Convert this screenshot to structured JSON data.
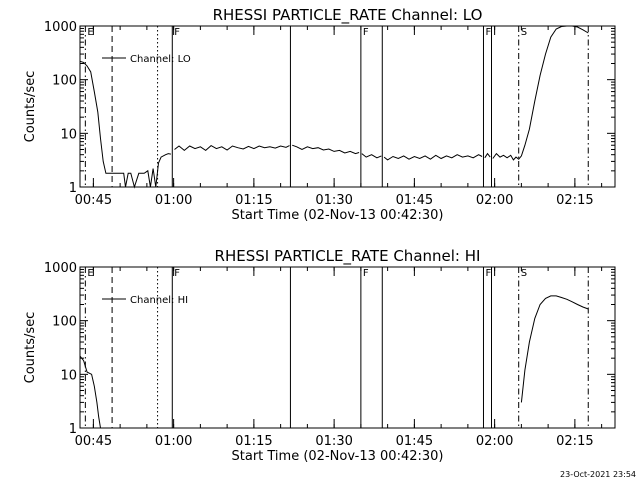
{
  "timestamp": "23-Oct-2021 23:54",
  "chart_data": [
    {
      "type": "line",
      "title": "RHESSI PARTICLE_RATE Channel: LO",
      "xlabel": "Start Time (02-Nov-13 00:42:30)",
      "ylabel": "Counts/sec",
      "yscale": "log",
      "ylim": [
        1,
        1000
      ],
      "xlim": [
        "00:42:30",
        "02:22:30"
      ],
      "x_tick_labels": [
        "00:45",
        "01:00",
        "01:15",
        "01:30",
        "01:45",
        "02:00",
        "02:15"
      ],
      "y_tick_labels": [
        "1",
        "10",
        "100",
        "1000"
      ],
      "legend": {
        "label": "Channel: LO",
        "position": "top-left"
      },
      "series": [
        {
          "name": "Channel: LO",
          "segments": [
            [
              [
                "00:42:30",
                220
              ],
              [
                "00:43:10",
                210
              ],
              [
                "00:43:50",
                180
              ],
              [
                "00:44:30",
                140
              ],
              [
                "00:45:10",
                60
              ],
              [
                "00:45:50",
                25
              ],
              [
                "00:46:20",
                8
              ],
              [
                "00:46:50",
                3
              ],
              [
                "00:47:20",
                1.8
              ],
              [
                "00:48:10",
                1.8
              ],
              [
                "00:49:00",
                1.8
              ],
              [
                "00:50:00",
                1.8
              ],
              [
                "00:50:40",
                1.8
              ],
              [
                "00:51:00",
                1.0
              ],
              [
                "00:51:30",
                1.8
              ],
              [
                "00:52:00",
                1.8
              ],
              [
                "00:52:40",
                1.0
              ],
              [
                "00:53:30",
                1.8
              ],
              [
                "00:54:30",
                1.8
              ],
              [
                "00:55:10",
                2.0
              ],
              [
                "00:55:40",
                1.0
              ],
              [
                "00:56:10",
                2.2
              ],
              [
                "00:56:40",
                1.0
              ],
              [
                "00:57:10",
                2.8
              ],
              [
                "00:57:40",
                3.6
              ],
              [
                "00:58:30",
                4.0
              ],
              [
                "00:59:00",
                4.2
              ],
              [
                "00:59:30",
                4.1
              ]
            ],
            [
              [
                "01:00:10",
                5.0
              ],
              [
                "01:01:00",
                5.8
              ],
              [
                "01:02:00",
                4.8
              ],
              [
                "01:03:00",
                5.8
              ],
              [
                "01:04:00",
                5.2
              ],
              [
                "01:05:00",
                5.6
              ],
              [
                "01:06:00",
                4.8
              ],
              [
                "01:07:00",
                5.9
              ],
              [
                "01:08:00",
                5.2
              ],
              [
                "01:09:00",
                5.6
              ],
              [
                "01:10:00",
                4.9
              ],
              [
                "01:11:00",
                5.8
              ],
              [
                "01:12:00",
                5.4
              ],
              [
                "01:13:00",
                5.1
              ],
              [
                "01:14:00",
                5.7
              ],
              [
                "01:15:00",
                5.2
              ],
              [
                "01:16:00",
                5.8
              ],
              [
                "01:17:00",
                5.4
              ],
              [
                "01:18:00",
                5.6
              ],
              [
                "01:19:00",
                5.3
              ],
              [
                "01:20:00",
                5.8
              ],
              [
                "01:21:00",
                5.5
              ],
              [
                "01:21:40",
                5.9
              ]
            ],
            [
              [
                "01:22:10",
                6.0
              ],
              [
                "01:23:00",
                5.6
              ],
              [
                "01:24:00",
                5.0
              ],
              [
                "01:25:00",
                5.6
              ],
              [
                "01:26:00",
                5.2
              ],
              [
                "01:27:00",
                5.4
              ],
              [
                "01:28:00",
                4.9
              ],
              [
                "01:29:00",
                5.1
              ],
              [
                "01:30:00",
                4.6
              ],
              [
                "01:31:00",
                4.8
              ],
              [
                "01:32:00",
                4.3
              ],
              [
                "01:33:00",
                4.6
              ],
              [
                "01:34:00",
                4.2
              ],
              [
                "01:34:40",
                4.4
              ]
            ],
            [
              [
                "01:35:10",
                4.2
              ],
              [
                "01:36:00",
                3.6
              ],
              [
                "01:37:00",
                4.0
              ],
              [
                "01:38:00",
                3.5
              ],
              [
                "01:38:50",
                3.8
              ]
            ],
            [
              [
                "01:39:20",
                3.6
              ],
              [
                "01:40:00",
                3.2
              ],
              [
                "01:41:00",
                3.7
              ],
              [
                "01:42:00",
                3.4
              ],
              [
                "01:43:00",
                3.8
              ],
              [
                "01:44:00",
                3.3
              ],
              [
                "01:45:00",
                3.7
              ],
              [
                "01:46:00",
                3.4
              ],
              [
                "01:47:00",
                3.8
              ],
              [
                "01:48:00",
                3.3
              ],
              [
                "01:49:00",
                3.9
              ],
              [
                "01:50:00",
                3.4
              ],
              [
                "01:51:00",
                3.8
              ],
              [
                "01:52:00",
                3.5
              ],
              [
                "01:53:00",
                4.0
              ],
              [
                "01:54:00",
                3.6
              ],
              [
                "01:55:00",
                3.8
              ],
              [
                "01:56:00",
                3.5
              ],
              [
                "01:57:00",
                4.0
              ],
              [
                "01:57:40",
                3.7
              ]
            ],
            [
              [
                "01:58:10",
                3.5
              ],
              [
                "01:58:40",
                4.2
              ],
              [
                "01:59:10",
                3.6
              ]
            ],
            [
              [
                "01:59:40",
                3.4
              ],
              [
                "02:00:20",
                4.2
              ],
              [
                "02:01:00",
                3.6
              ],
              [
                "02:01:40",
                3.9
              ],
              [
                "02:02:20",
                3.5
              ],
              [
                "02:03:00",
                3.9
              ],
              [
                "02:03:30",
                3.2
              ],
              [
                "02:04:00",
                3.6
              ],
              [
                "02:04:30",
                3.3
              ],
              [
                "02:05:00",
                3.8
              ],
              [
                "02:05:40",
                6
              ],
              [
                "02:06:30",
                12
              ],
              [
                "02:07:30",
                40
              ],
              [
                "02:08:30",
                120
              ],
              [
                "02:09:30",
                300
              ],
              [
                "02:10:30",
                620
              ],
              [
                "02:11:30",
                880
              ],
              [
                "02:12:30",
                980
              ],
              [
                "02:13:30",
                1000
              ],
              [
                "02:14:30",
                1000
              ],
              [
                "02:15:30",
                960
              ],
              [
                "02:16:30",
                850
              ],
              [
                "02:17:30",
                740
              ]
            ]
          ]
        }
      ],
      "markers": [
        {
          "time": "00:43:30",
          "style": "dash-dot",
          "label": "E"
        },
        {
          "time": "00:48:30",
          "style": "dashed",
          "label": ""
        },
        {
          "time": "00:57:00",
          "style": "dotted",
          "label": ""
        },
        {
          "time": "00:59:45",
          "style": "solid",
          "label": "F"
        },
        {
          "time": "01:21:50",
          "style": "solid",
          "label": ""
        },
        {
          "time": "01:35:00",
          "style": "solid",
          "label": "F"
        },
        {
          "time": "01:39:00",
          "style": "solid",
          "label": ""
        },
        {
          "time": "01:57:55",
          "style": "solid",
          "label": "F"
        },
        {
          "time": "01:59:25",
          "style": "solid",
          "label": ""
        },
        {
          "time": "02:04:30",
          "style": "dash-dot",
          "label": "S"
        },
        {
          "time": "02:17:30",
          "style": "dash-dot",
          "label": ""
        }
      ]
    },
    {
      "type": "line",
      "title": "RHESSI PARTICLE_RATE Channel: HI",
      "xlabel": "Start Time (02-Nov-13 00:42:30)",
      "ylabel": "Counts/sec",
      "yscale": "log",
      "ylim": [
        1,
        1000
      ],
      "xlim": [
        "00:42:30",
        "02:22:30"
      ],
      "x_tick_labels": [
        "00:45",
        "01:00",
        "01:15",
        "01:30",
        "01:45",
        "02:00",
        "02:15"
      ],
      "y_tick_labels": [
        "1",
        "10",
        "100",
        "1000"
      ],
      "legend": {
        "label": "Channel: HI",
        "position": "top-left"
      },
      "series": [
        {
          "name": "Channel: HI",
          "segments": [
            [
              [
                "00:42:30",
                22
              ],
              [
                "00:43:10",
                18
              ],
              [
                "00:43:50",
                11
              ],
              [
                "00:44:40",
                10
              ],
              [
                "00:45:10",
                6
              ],
              [
                "00:45:40",
                3
              ],
              [
                "00:46:00",
                1.6
              ],
              [
                "00:46:20",
                1.0
              ]
            ],
            [
              [
                "02:05:00",
                3
              ],
              [
                "02:05:40",
                12
              ],
              [
                "02:06:30",
                40
              ],
              [
                "02:07:30",
                110
              ],
              [
                "02:08:30",
                200
              ],
              [
                "02:09:30",
                260
              ],
              [
                "02:10:30",
                290
              ],
              [
                "02:11:30",
                290
              ],
              [
                "02:12:30",
                270
              ],
              [
                "02:13:30",
                250
              ],
              [
                "02:14:30",
                225
              ],
              [
                "02:15:30",
                200
              ],
              [
                "02:16:30",
                180
              ],
              [
                "02:17:30",
                165
              ]
            ]
          ]
        }
      ],
      "markers": [
        {
          "time": "00:43:30",
          "style": "dash-dot",
          "label": "E"
        },
        {
          "time": "00:48:30",
          "style": "dashed",
          "label": ""
        },
        {
          "time": "00:57:00",
          "style": "dotted",
          "label": ""
        },
        {
          "time": "00:59:45",
          "style": "solid",
          "label": "F"
        },
        {
          "time": "01:21:50",
          "style": "solid",
          "label": ""
        },
        {
          "time": "01:35:00",
          "style": "solid",
          "label": "F"
        },
        {
          "time": "01:39:00",
          "style": "solid",
          "label": ""
        },
        {
          "time": "01:57:55",
          "style": "solid",
          "label": "F"
        },
        {
          "time": "01:59:25",
          "style": "solid",
          "label": ""
        },
        {
          "time": "02:04:30",
          "style": "dash-dot",
          "label": "S"
        },
        {
          "time": "02:17:30",
          "style": "dash-dot",
          "label": ""
        }
      ]
    }
  ]
}
